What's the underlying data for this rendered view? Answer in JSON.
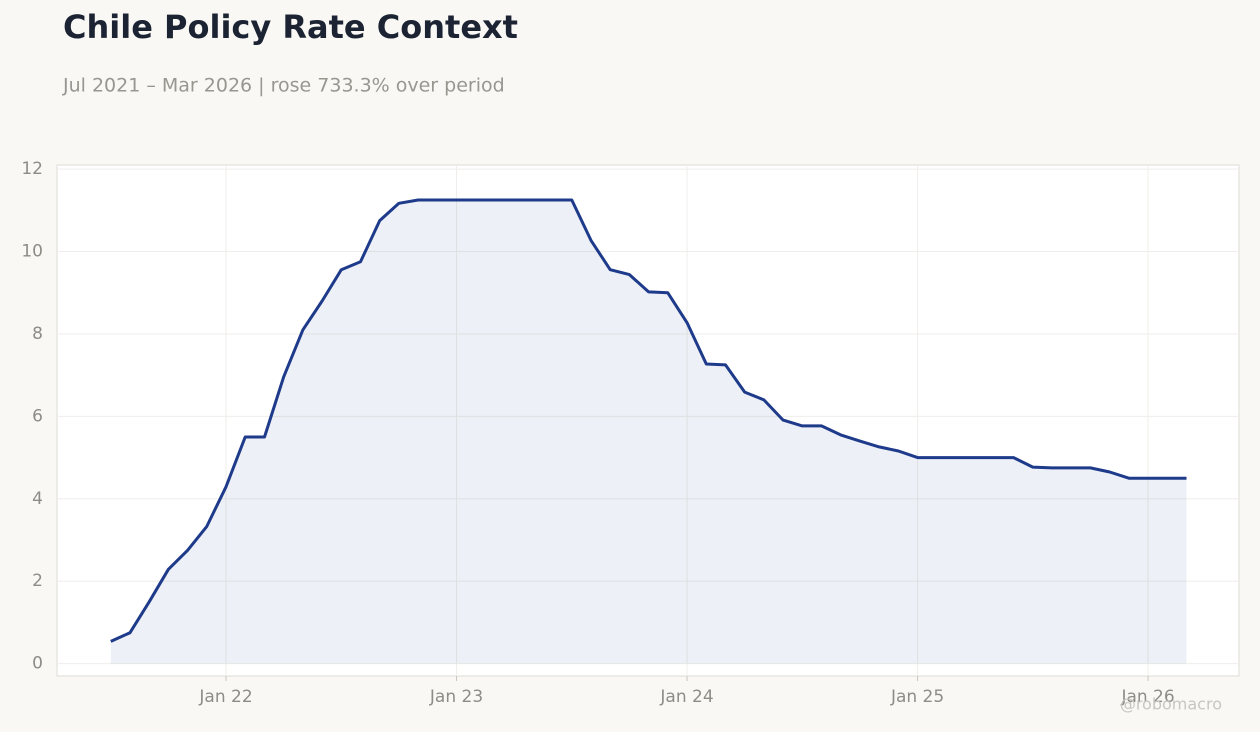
{
  "chart_data": {
    "type": "area-line",
    "title": "Chile Policy Rate Context",
    "subtitle": "Jul 2021 – Mar 2026 | rose 733.3% over period",
    "watermark": "@robomacro",
    "color": "#1e3a8a",
    "grid": true,
    "x": [
      "2021-07",
      "2021-08",
      "2021-09",
      "2021-10",
      "2021-11",
      "2021-12",
      "2022-01",
      "2022-02",
      "2022-03",
      "2022-04",
      "2022-05",
      "2022-06",
      "2022-07",
      "2022-08",
      "2022-09",
      "2022-10",
      "2022-11",
      "2022-12",
      "2023-01",
      "2023-02",
      "2023-03",
      "2023-04",
      "2023-05",
      "2023-06",
      "2023-07",
      "2023-08",
      "2023-09",
      "2023-10",
      "2023-11",
      "2023-12",
      "2024-01",
      "2024-02",
      "2024-03",
      "2024-04",
      "2024-05",
      "2024-06",
      "2024-07",
      "2024-08",
      "2024-09",
      "2024-10",
      "2024-11",
      "2024-12",
      "2025-01",
      "2025-02",
      "2025-03",
      "2025-04",
      "2025-05",
      "2025-06",
      "2025-07",
      "2025-08",
      "2025-09",
      "2025-10",
      "2025-11",
      "2025-12",
      "2026-01",
      "2026-02",
      "2026-03"
    ],
    "values": [
      0.54,
      0.75,
      1.5,
      2.29,
      2.75,
      3.33,
      4.29,
      5.5,
      5.5,
      6.96,
      8.1,
      8.8,
      9.56,
      9.75,
      10.75,
      11.17,
      11.25,
      11.25,
      11.25,
      11.25,
      11.25,
      11.25,
      11.25,
      11.25,
      11.25,
      10.27,
      9.56,
      9.44,
      9.02,
      9.0,
      8.27,
      7.27,
      7.25,
      6.59,
      6.4,
      5.91,
      5.77,
      5.77,
      5.55,
      5.4,
      5.26,
      5.16,
      5.0,
      5.0,
      5.0,
      5.0,
      5.0,
      5.0,
      4.77,
      4.75,
      4.75,
      4.75,
      4.65,
      4.5,
      4.5,
      4.5,
      4.5
    ],
    "xlim": [
      "2021-04-07",
      "2026-05-23"
    ],
    "xticks": [
      {
        "value": "2022-01",
        "label": "Jan 22"
      },
      {
        "value": "2023-01",
        "label": "Jan 23"
      },
      {
        "value": "2024-01",
        "label": "Jan 24"
      },
      {
        "value": "2025-01",
        "label": "Jan 25"
      },
      {
        "value": "2026-01",
        "label": "Jan 26"
      }
    ],
    "ylim": [
      -0.3,
      12.1
    ],
    "yticks": [
      0,
      2,
      4,
      6,
      8,
      10,
      12
    ]
  }
}
